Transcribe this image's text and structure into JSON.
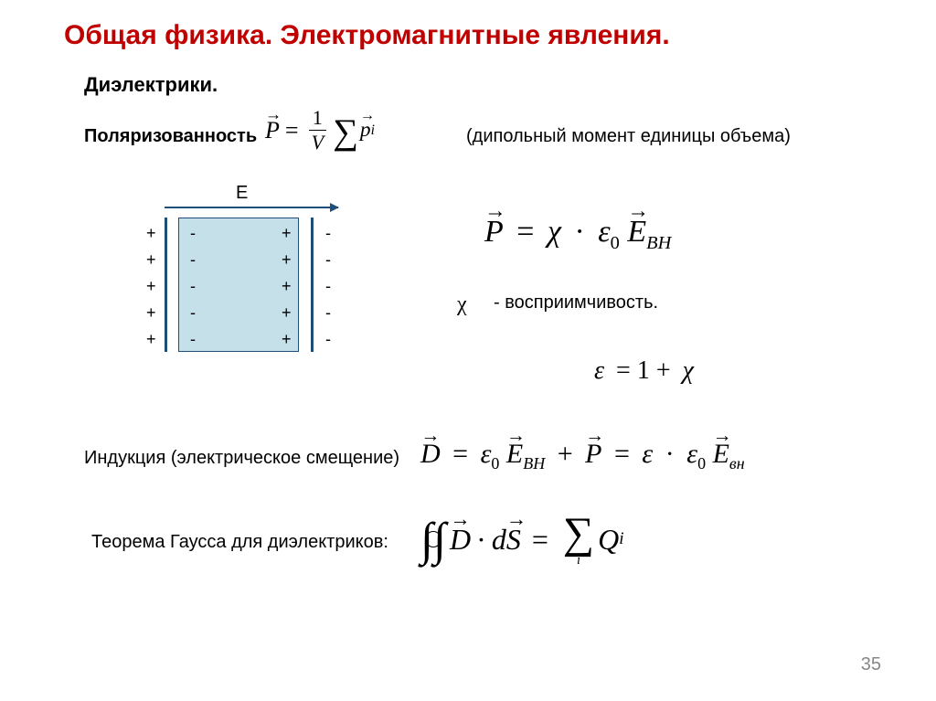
{
  "title": "Общая физика. Электромагнитные явления.",
  "subtitle": "Диэлектрики.",
  "polarization_label": "Поляризованность",
  "dipole_note": "(дипольный момент единицы объема)",
  "chi_symbol": "χ",
  "chi_note": "- восприимчивость.",
  "induction_label": "Индукция (электрическое смещение)",
  "gauss_label": "Теорема Гаусса для диэлектриков:",
  "page_number": "35",
  "diagram": {
    "field_label": "E",
    "field_color": "#1f4e79",
    "slab_fill": "#c5e0e8",
    "charge_cols": {
      "a": [
        "+",
        "+",
        "+",
        "+",
        "+"
      ],
      "b": [
        "-",
        "-",
        "-",
        "-",
        "-"
      ],
      "c": [
        "+",
        "+",
        "+",
        "+",
        "+"
      ],
      "d": [
        "-",
        "-",
        "-",
        "-",
        "-"
      ]
    }
  },
  "formulas": {
    "p_def": {
      "P": "P",
      "one": "1",
      "V": "V",
      "sum": "∑",
      "p": "p",
      "i": "i",
      "eq": "="
    },
    "p_chi": {
      "P": "P",
      "eq": "=",
      "chi": "χ",
      "dot": "·",
      "eps": "ε",
      "zero": "0",
      "E": "E",
      "sub": "ВН"
    },
    "eps": {
      "eps": "ε",
      "eq": "=",
      "one": "1",
      "plus": "+",
      "chi": "χ"
    },
    "d": {
      "D": "D",
      "eq": "=",
      "eps": "ε",
      "zero": "0",
      "E": "E",
      "sub1": "ВН",
      "plus": "+",
      "P": "P",
      "dot": "·",
      "sub2": "вн"
    },
    "gauss": {
      "int": "∫∫",
      "D": "D",
      "dot": "·",
      "d": "d",
      "S": "S",
      "eq": "=",
      "sum": "∑",
      "Q": "Q",
      "i": "i"
    }
  },
  "colors": {
    "title": "#c00000",
    "text": "#000000",
    "page_num": "#888888"
  }
}
